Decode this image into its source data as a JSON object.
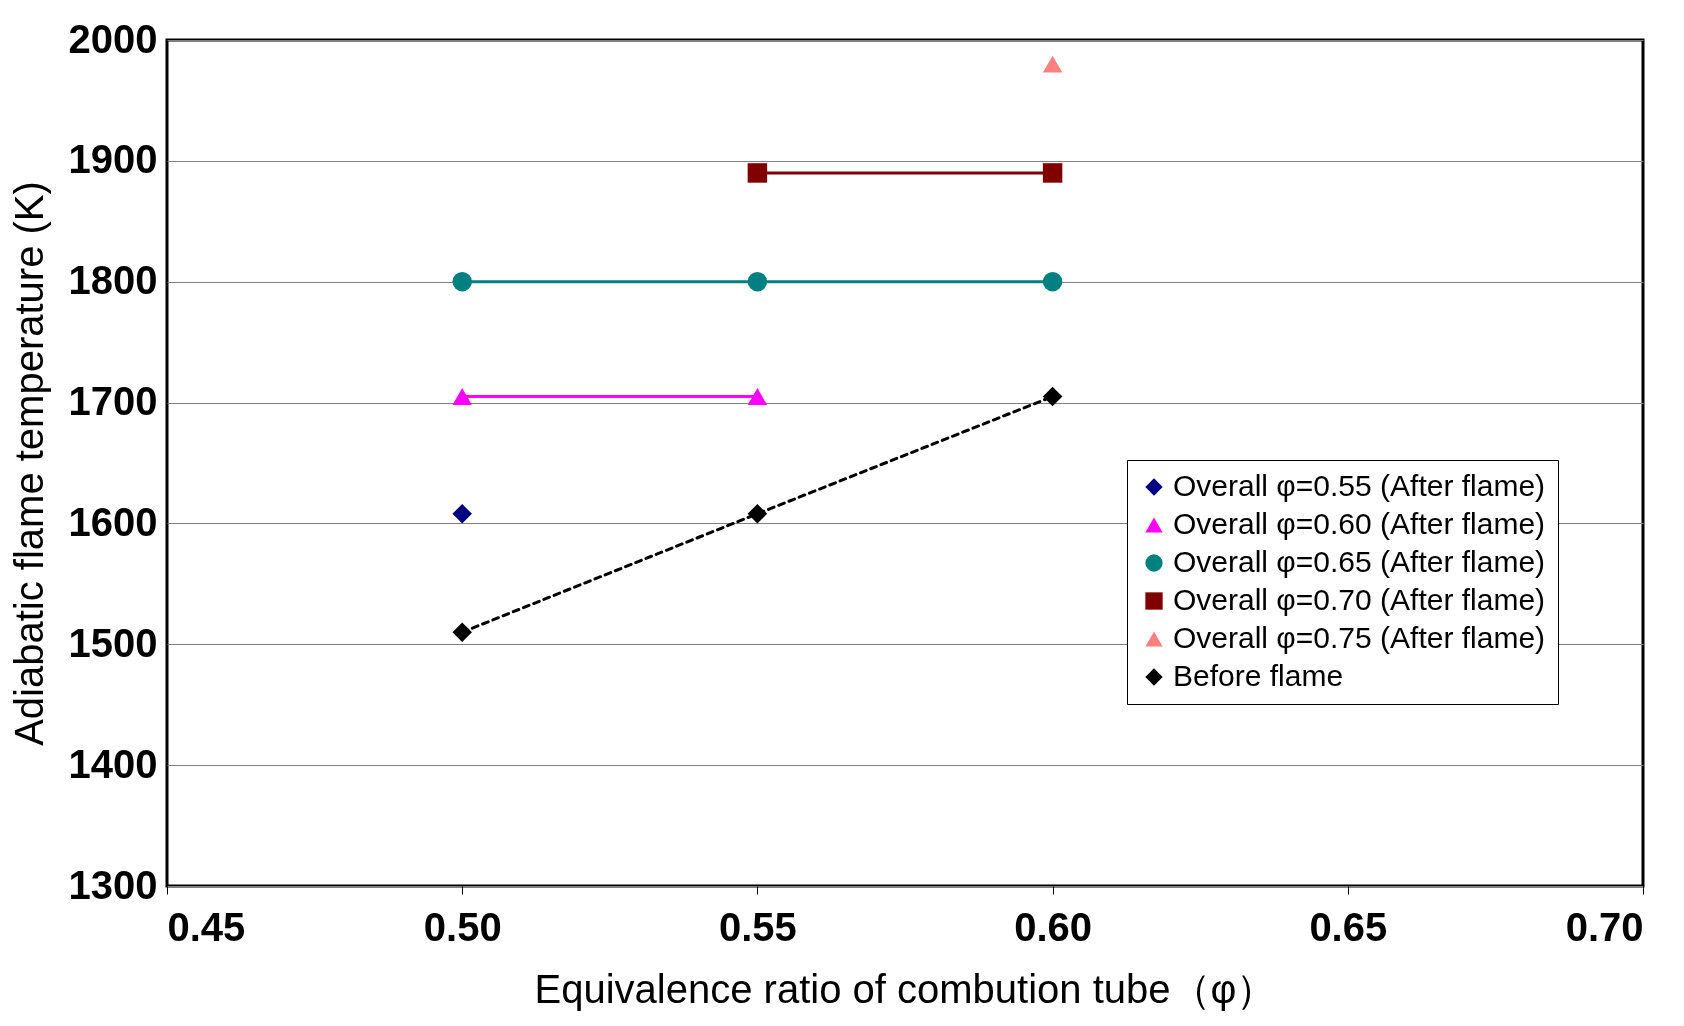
{
  "chart_data": {
    "type": "line",
    "xlabel": "Equivalence ratio of combution tube（φ）",
    "ylabel": "Adiabatic flame temperature (K)",
    "xlim": [
      0.45,
      0.7
    ],
    "xticks": [
      0.45,
      {
        "value": 0.5,
        "label": "0.50"
      },
      0.55,
      {
        "value": 0.6,
        "label": "0.60"
      },
      0.65,
      {
        "value": 0.7,
        "label": "0.70"
      }
    ],
    "ylim": [
      1300,
      2000
    ],
    "yticks": [
      1300,
      1400,
      1500,
      1600,
      1700,
      1800,
      1900,
      2000
    ],
    "grid": "y",
    "legend": "right",
    "series": [
      {
        "name": "Overall φ=0.55 (After flame)",
        "color": "#000080",
        "marker": "diamond",
        "line_style": "solid",
        "x": [
          0.5
        ],
        "values": [
          1608
        ]
      },
      {
        "name": "Overall φ=0.60 (After flame)",
        "color": "#ff00ff",
        "marker": "triangle",
        "line_style": "solid",
        "x": [
          0.5,
          0.55
        ],
        "values": [
          1705,
          1705
        ]
      },
      {
        "name": "Overall φ=0.65 (After flame)",
        "color": "#008080",
        "marker": "circle",
        "line_style": "solid",
        "x": [
          0.5,
          0.55,
          0.6
        ],
        "values": [
          1800,
          1800,
          1800
        ]
      },
      {
        "name": "Overall φ=0.70 (After flame)",
        "color": "#800000",
        "marker": "square",
        "line_style": "solid",
        "x": [
          0.55,
          0.6
        ],
        "values": [
          1890,
          1890
        ]
      },
      {
        "name": "Overall φ=0.75 (After flame)",
        "color": "#ff8080",
        "marker": "triangle",
        "line_style": "solid",
        "x": [
          0.6
        ],
        "values": [
          1980
        ]
      },
      {
        "name": "Before flame",
        "color": "#000000",
        "marker": "diamond",
        "line_style": "dashed",
        "x": [
          0.5,
          0.55,
          0.6
        ],
        "values": [
          1510,
          1608,
          1705
        ]
      }
    ]
  }
}
